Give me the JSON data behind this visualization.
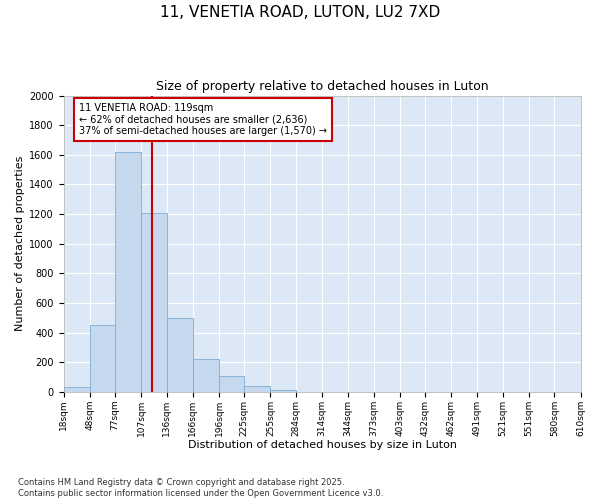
{
  "title1": "11, VENETIA ROAD, LUTON, LU2 7XD",
  "title2": "Size of property relative to detached houses in Luton",
  "xlabel": "Distribution of detached houses by size in Luton",
  "ylabel": "Number of detached properties",
  "annotation_line1": "11 VENETIA ROAD: 119sqm",
  "annotation_line2": "← 62% of detached houses are smaller (2,636)",
  "annotation_line3": "37% of semi-detached houses are larger (1,570) →",
  "property_size": 119,
  "bin_edges": [
    18,
    48,
    77,
    107,
    136,
    166,
    196,
    225,
    255,
    284,
    314,
    344,
    373,
    403,
    432,
    462,
    491,
    521,
    551,
    580,
    610
  ],
  "bar_heights": [
    30,
    450,
    1620,
    1210,
    500,
    220,
    110,
    40,
    15,
    0,
    0,
    0,
    0,
    0,
    0,
    0,
    0,
    0,
    0,
    0
  ],
  "bar_color": "#c5d8ed",
  "bar_edge_color": "#7aadd4",
  "fig_bg_color": "#ffffff",
  "plot_bg_color": "#dce8f5",
  "grid_color": "#ffffff",
  "vline_color": "#cc0000",
  "annotation_box_edge_color": "#cc0000",
  "annotation_box_face_color": "#ffffff",
  "ylim": [
    0,
    2000
  ],
  "yticks": [
    0,
    200,
    400,
    600,
    800,
    1000,
    1200,
    1400,
    1600,
    1800,
    2000
  ],
  "footer1": "Contains HM Land Registry data © Crown copyright and database right 2025.",
  "footer2": "Contains public sector information licensed under the Open Government Licence v3.0."
}
